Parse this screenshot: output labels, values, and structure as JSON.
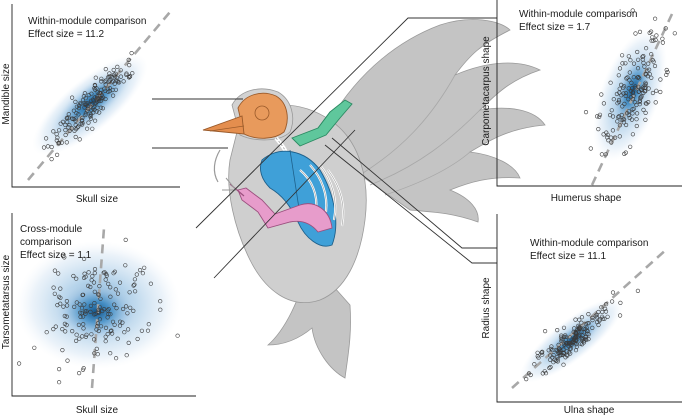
{
  "panels": {
    "skull_mandible": {
      "title_line1": "Within-module comparison",
      "title_line2": "Effect size = 11.2",
      "xlabel": "Skull size",
      "ylabel": "Mandible size"
    },
    "humerus_carpometacarpus": {
      "title_line1": "Within-module comparison",
      "title_line2": "Effect size = 1.7",
      "xlabel": "Humerus shape",
      "ylabel": "Carpometacarpus shape"
    },
    "skull_tarsometatarsus": {
      "title_line1": "Cross-module",
      "title_line2": "comparison",
      "title_line3": "Effect size = 1.1",
      "xlabel": "Skull size",
      "ylabel": "Tarsometatarsus size"
    },
    "ulna_radius": {
      "title_line1": "Within-module comparison",
      "title_line2": "Effect size = 11.1",
      "xlabel": "Ulna shape",
      "ylabel": "Radius shape"
    }
  },
  "colors": {
    "density_light": "#dbe7f3",
    "density_mid": "#7fb0d8",
    "density_dark": "#1f6fa8",
    "fit_line": "#a8a8a8",
    "bird_body": "#c8c8c8",
    "skull": "#e59a5a",
    "wing_bones": "#5cc49a",
    "pectoral": "#3f9fd6",
    "leg_bones": "#e59ac8"
  }
}
